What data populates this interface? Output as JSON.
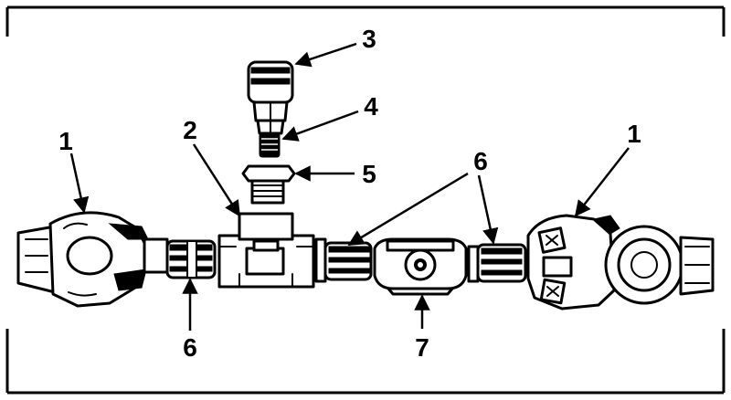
{
  "callouts": [
    {
      "id": "gladhand-left",
      "text": "1"
    },
    {
      "id": "tee-fitting",
      "text": "2"
    },
    {
      "id": "valve-cap",
      "text": "3"
    },
    {
      "id": "nipple",
      "text": "4"
    },
    {
      "id": "bushing",
      "text": "5"
    },
    {
      "id": "hose-left",
      "text": "6"
    },
    {
      "id": "hose-center",
      "text": "6"
    },
    {
      "id": "gladhand-right",
      "text": "1"
    },
    {
      "id": "filter",
      "text": "7"
    }
  ],
  "colors": {
    "ink": "#000000",
    "paper": "#ffffff"
  }
}
